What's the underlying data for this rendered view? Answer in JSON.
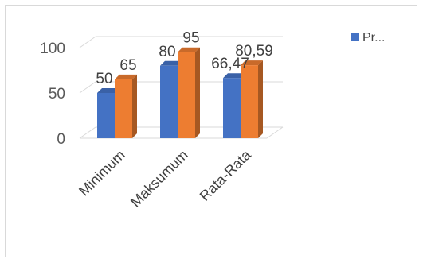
{
  "chart_data": {
    "type": "bar",
    "style": "3d-clustered-column",
    "categories": [
      "Minimum",
      "Maksumum",
      "Rata-Rata"
    ],
    "series": [
      {
        "name": "Pr...",
        "color": "#4472C4",
        "values": [
          50,
          80,
          66.47
        ],
        "labels": [
          "50",
          "80",
          "66,47"
        ]
      },
      {
        "color": "#ED7D31",
        "values": [
          65,
          95,
          80.59
        ],
        "labels": [
          "65",
          "95",
          "80,59"
        ]
      }
    ],
    "ylim": [
      0,
      100
    ],
    "yticks": [
      0,
      50,
      100
    ],
    "grid": true,
    "legend": "right",
    "xlabel": "",
    "ylabel": "",
    "title": ""
  }
}
